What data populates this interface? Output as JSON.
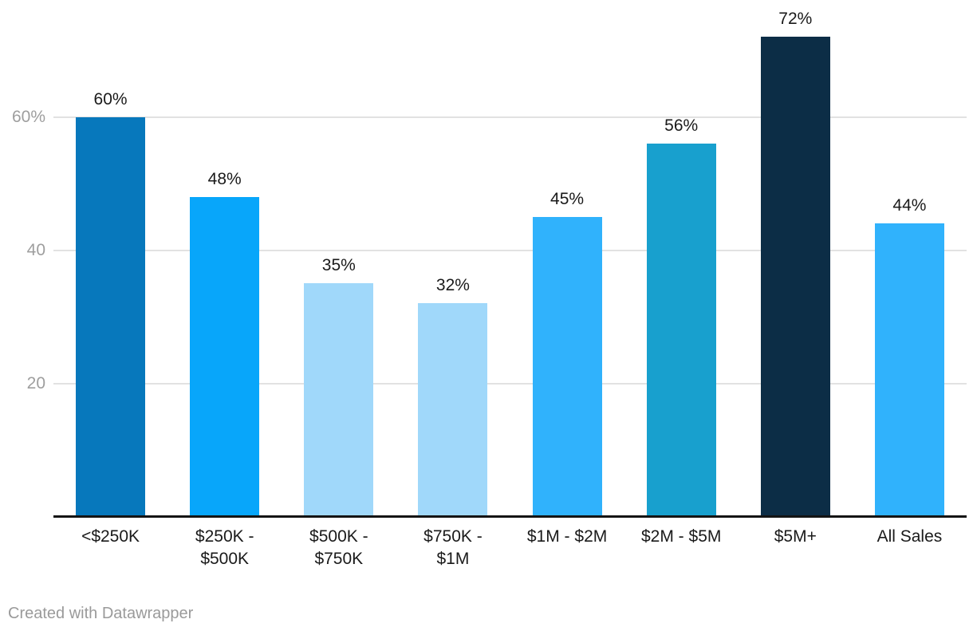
{
  "chart_data": {
    "type": "bar",
    "categories": [
      "<$250K",
      "$250K - $500K",
      "$500K - $750K",
      "$750K - $1M",
      "$1M - $2M",
      "$2M - $5M",
      "$5M+",
      "All Sales"
    ],
    "wrapped_labels": [
      "<$250K",
      "$250K -\n$500K",
      "$500K -\n$750K",
      "$750K -\n$1M",
      "$1M - $2M",
      "$2M - $5M",
      "$5M+",
      "All Sales"
    ],
    "values": [
      60,
      48,
      35,
      32,
      45,
      56,
      72,
      44
    ],
    "value_labels": [
      "60%",
      "48%",
      "35%",
      "32%",
      "45%",
      "56%",
      "72%",
      "44%"
    ],
    "bar_colors": [
      "#0778bc",
      "#08a6fa",
      "#a0d8fa",
      "#a0d8fa",
      "#30b2fc",
      "#18a0ce",
      "#0c2d46",
      "#30b2fc"
    ],
    "title": "",
    "xlabel": "",
    "ylabel": "",
    "ylim": [
      0,
      75
    ],
    "y_ticks": [
      {
        "value": 20,
        "label": "20"
      },
      {
        "value": 40,
        "label": "40"
      },
      {
        "value": 60,
        "label": "60%"
      }
    ],
    "grid": "horizontal-only",
    "legend": "none"
  },
  "colors": {
    "background": "#ffffff",
    "grid": "#e2e2e2",
    "axis_line": "#141414",
    "tick_label": "#9e9e9e",
    "value_label": "#1a1a1a",
    "category_label": "#1a1a1a",
    "footer_text": "#9a9a9a"
  },
  "footer": {
    "credit": "Created with Datawrapper"
  }
}
